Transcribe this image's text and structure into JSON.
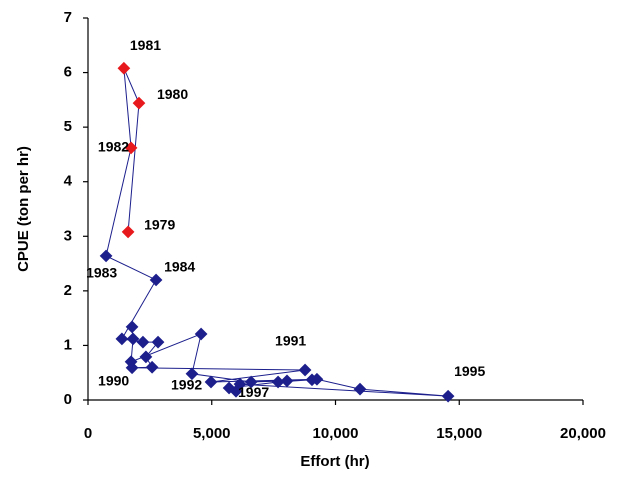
{
  "chart_data": {
    "type": "scatter",
    "connected": true,
    "line_color": "#1c1f8c",
    "x_label": "Effort (hr)",
    "y_label": "CPUE (ton per hr)",
    "x": [
      1620,
      2060,
      1450,
      1740,
      730,
      2750,
      1370,
      2220,
      2830,
      2340,
      2590,
      1780,
      8770,
      4970,
      9250,
      10990,
      14550,
      6140,
      5980,
      5700,
      7680,
      9050,
      8040,
      6590,
      4200,
      4570,
      1740,
      1820,
      1780
    ],
    "values": [
      3.08,
      5.44,
      6.08,
      4.62,
      2.64,
      2.2,
      1.12,
      1.06,
      1.06,
      0.79,
      0.6,
      0.59,
      0.55,
      0.33,
      0.38,
      0.2,
      0.07,
      0.29,
      0.16,
      0.22,
      0.33,
      0.37,
      0.35,
      0.33,
      0.48,
      1.21,
      0.7,
      1.12,
      1.34
    ],
    "point_colors": [
      "#e8191c",
      "#e8191c",
      "#e8191c",
      "#e8191c",
      "#1c1f8c",
      "#1c1f8c",
      "#1c1f8c",
      "#1c1f8c",
      "#1c1f8c",
      "#1c1f8c",
      "#1c1f8c",
      "#1c1f8c",
      "#1c1f8c",
      "#1c1f8c",
      "#1c1f8c",
      "#1c1f8c",
      "#1c1f8c",
      "#1c1f8c",
      "#1c1f8c",
      "#1c1f8c",
      "#1c1f8c",
      "#1c1f8c",
      "#1c1f8c",
      "#1c1f8c",
      "#1c1f8c",
      "#1c1f8c",
      "#1c1f8c",
      "#1c1f8c",
      "#1c1f8c"
    ],
    "point_labels": [
      "1979",
      "1980",
      "1981",
      "1982",
      "1983",
      "1984",
      null,
      null,
      null,
      null,
      null,
      "1990",
      "1991",
      "1992",
      null,
      null,
      "1995",
      null,
      "1997",
      null,
      null,
      null,
      null,
      null,
      null,
      null,
      null,
      null,
      null
    ],
    "xlim": [
      0,
      20000
    ],
    "ylim": [
      0,
      7
    ],
    "xticks": [
      0,
      {
        "value": 5000,
        "label": "5,000"
      },
      {
        "value": 10000,
        "label": "10,000"
      },
      {
        "value": 15000,
        "label": "15,000"
      },
      {
        "value": 20000,
        "label": "20,000"
      }
    ],
    "yticks": [
      0,
      1,
      2,
      3,
      4,
      5,
      6,
      7
    ],
    "grid": false
  }
}
